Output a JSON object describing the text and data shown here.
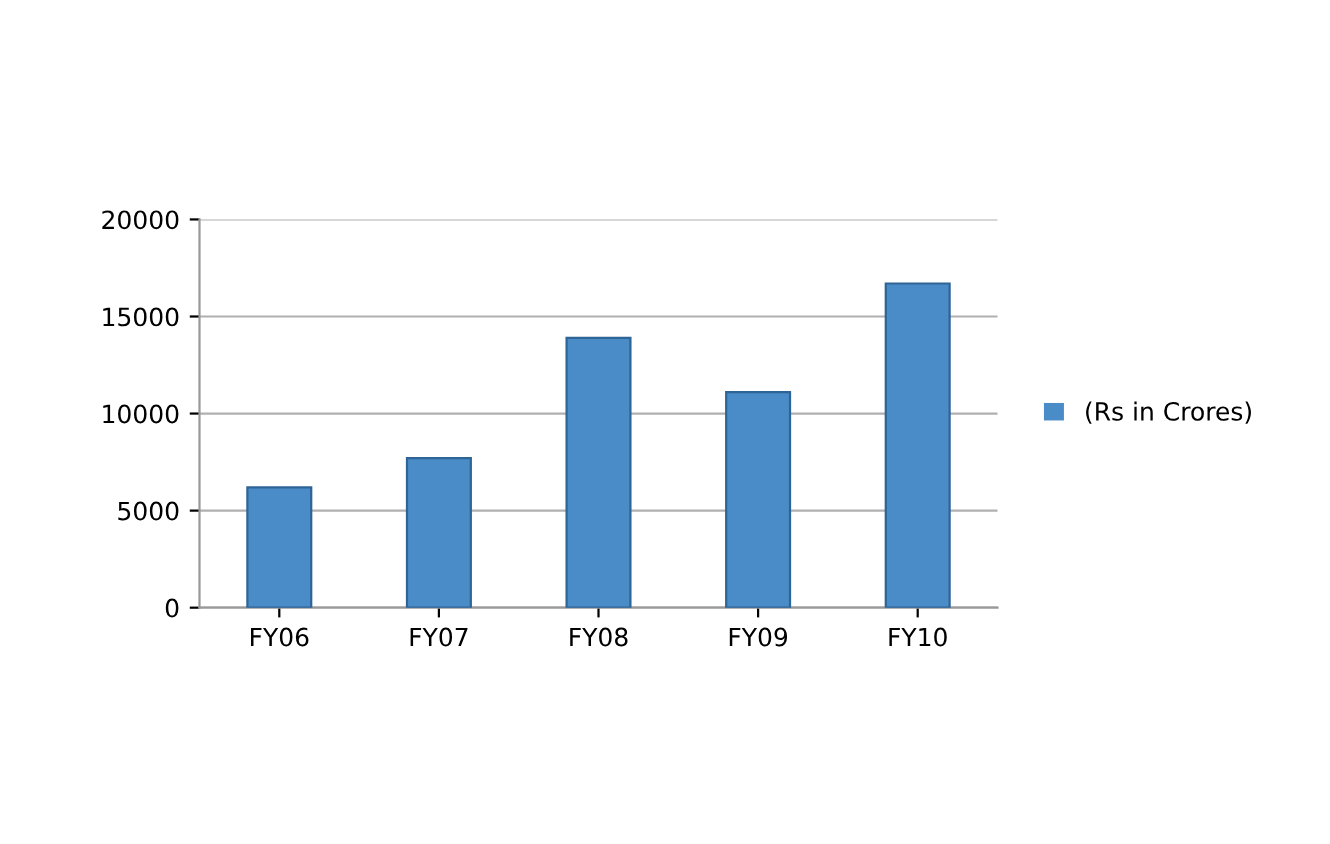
{
  "chart_data": {
    "type": "bar",
    "categories": [
      "FY06",
      "FY07",
      "FY08",
      "FY09",
      "FY10"
    ],
    "series": [
      {
        "name": "(Rs in Crores)",
        "color": "#4a8cc8",
        "values": [
          6200,
          7700,
          13900,
          11100,
          16700
        ]
      }
    ],
    "ylim": [
      0,
      20000
    ],
    "yticks": [
      0,
      5000,
      10000,
      15000,
      20000
    ],
    "grid": "y",
    "legend": "right"
  }
}
